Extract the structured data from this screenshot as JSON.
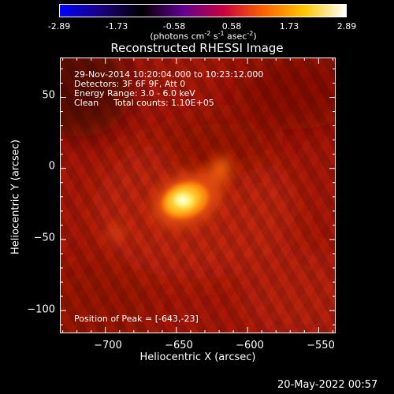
{
  "colorbar": {
    "ticks": [
      "-2.89",
      "-1.73",
      "-0.58",
      "0.58",
      "1.73",
      "2.89"
    ],
    "unit_main": "(photons cm",
    "unit_exp1": "-2",
    "unit_mid1": " s",
    "unit_exp2": "-1",
    "unit_mid2": " asec",
    "unit_exp3": "-2",
    "unit_end": ")",
    "colors": [
      "#0000ff",
      "#1a0080",
      "#000000",
      "#600090",
      "#c80040",
      "#ff6400",
      "#ffc800",
      "#ffffff"
    ]
  },
  "title": "Reconstructed RHESSI Image",
  "info": {
    "line1": "29-Nov-2014 10:20:04.000 to 10:23:12.000",
    "line2": "Detectors: 3F 6F 9F, Att 0",
    "line3": "Energy Range: 3.0 - 6.0 keV",
    "line4_a": "Clean",
    "line4_b": "Total counts: 1.10E+05",
    "peak": "Position of Peak = [-643,-23]"
  },
  "axes": {
    "xlabel": "Heliocentric X (arcsec)",
    "ylabel": "Heliocentric Y (arcsec)",
    "xticks": [
      -700,
      -650,
      -600,
      -550
    ],
    "xtick_labels": [
      "−700",
      "−650",
      "−600",
      "−550"
    ],
    "yticks": [
      50,
      0,
      -50,
      -100
    ],
    "ytick_labels": [
      "50",
      "0",
      "−50",
      "−100"
    ],
    "xlim": [
      -732,
      -538
    ],
    "ylim": [
      -116,
      78
    ]
  },
  "image": {
    "peak_position": [
      -643,
      -23
    ]
  },
  "timestamp": "20-May-2022 00:57"
}
